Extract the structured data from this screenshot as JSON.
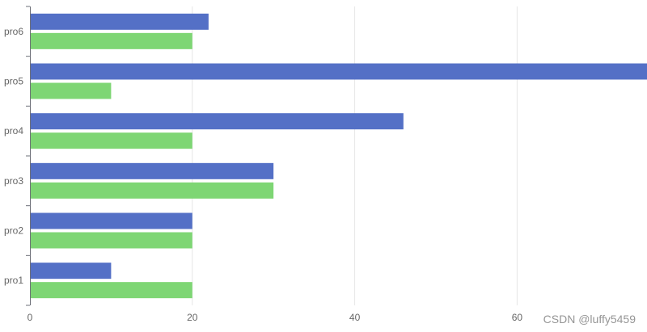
{
  "chart_data": {
    "type": "bar",
    "orientation": "horizontal",
    "categories": [
      "pro1",
      "pro2",
      "pro3",
      "pro4",
      "pro5",
      "pro6"
    ],
    "series": [
      {
        "values": [
          10,
          20,
          30,
          46,
          78,
          22
        ],
        "color": "#5470c6"
      },
      {
        "values": [
          20,
          20,
          30,
          20,
          10,
          20
        ],
        "color": "#7ed674"
      }
    ],
    "xlim": [
      0,
      76
    ],
    "x_ticks": [
      0,
      20,
      40,
      60
    ],
    "grid": true,
    "legend": "none",
    "title": "",
    "xlabel": "",
    "ylabel": ""
  },
  "watermark": "CSDN @luffy5459"
}
